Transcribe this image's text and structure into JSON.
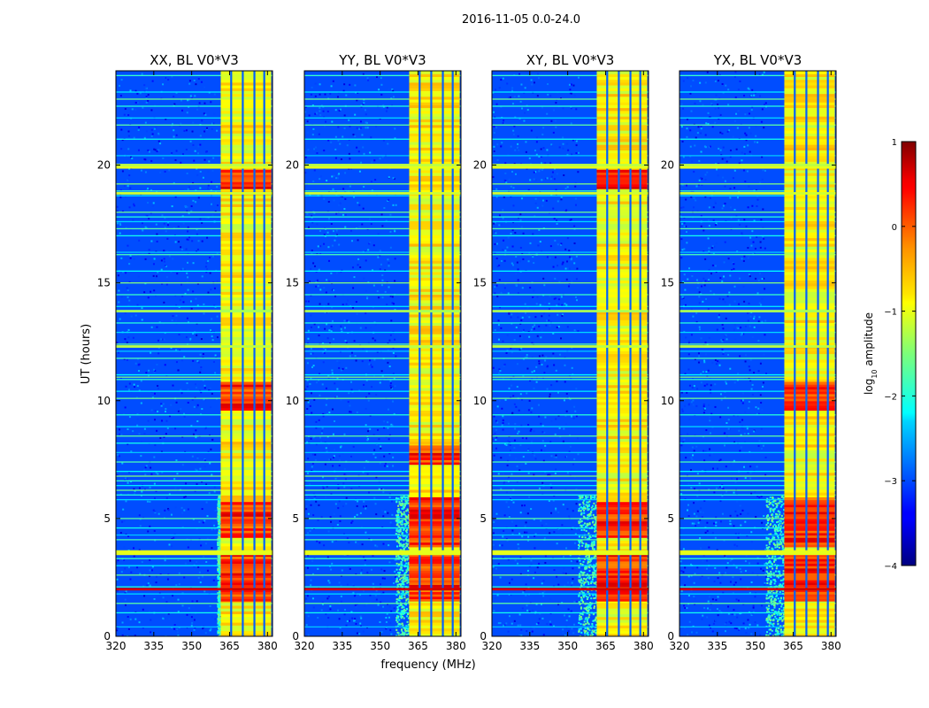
{
  "chart_data": {
    "type": "heatmap",
    "suptitle": "2016-11-05 0.0-24.0",
    "xlabel": "frequency (MHz)",
    "ylabel": "UT (hours)",
    "xlim": [
      320,
      382
    ],
    "ylim": [
      0,
      24
    ],
    "xticks": [
      320,
      335,
      350,
      365,
      380
    ],
    "yticks": [
      0,
      5,
      10,
      15,
      20
    ],
    "colormap": "jet",
    "colorbar": {
      "label": "log10 amplitude",
      "label_base": "log",
      "label_sub": "10",
      "label_rest": " amplitude",
      "range": [
        -4,
        1
      ],
      "ticks": [
        1,
        0,
        -1,
        -2,
        -3,
        -4
      ],
      "tick_labels": [
        "1",
        "0",
        "−1",
        "−2",
        "−3",
        "−4"
      ]
    },
    "panels": [
      {
        "title": "XX, BL V0*V3",
        "band_start_mhz": 361.5,
        "left_edge_mhz": 360,
        "red_zones_hours": [
          [
            1.5,
            3.5
          ],
          [
            4.2,
            5.6
          ],
          [
            9.6,
            10.7
          ],
          [
            19.0,
            19.8
          ]
        ]
      },
      {
        "title": "YY, BL V0*V3",
        "band_start_mhz": 361.5,
        "left_edge_mhz": 356,
        "red_zones_hours": [
          [
            1.5,
            3.5
          ],
          [
            3.8,
            5.8
          ],
          [
            7.3,
            8.0
          ]
        ]
      },
      {
        "title": "XY, BL V0*V3",
        "band_start_mhz": 361.5,
        "left_edge_mhz": 354,
        "red_zones_hours": [
          [
            1.5,
            3.5
          ],
          [
            4.2,
            5.6
          ],
          [
            19.0,
            19.8
          ]
        ]
      },
      {
        "title": "YX, BL V0*V3",
        "band_start_mhz": 361.5,
        "left_edge_mhz": 354,
        "red_zones_hours": [
          [
            1.5,
            3.5
          ],
          [
            3.8,
            5.8
          ],
          [
            9.6,
            10.7
          ]
        ]
      }
    ],
    "band": {
      "end_mhz": 381.5,
      "dark_gap_channels_mhz": [
        365.6,
        370.2,
        374.8,
        378.7
      ],
      "value_range": [
        -1.2,
        -0.5
      ]
    },
    "background_value": -3.0,
    "rfi_lines_hours": [
      0.4,
      1.0,
      1.4,
      1.8,
      2.1,
      2.6,
      3.0,
      3.3,
      3.5,
      3.6,
      4.1,
      4.3,
      4.6,
      5.0,
      5.8,
      6.0,
      6.2,
      6.4,
      6.6,
      6.8,
      7.0,
      7.4,
      7.8,
      8.2,
      8.5,
      8.9,
      9.4,
      10.1,
      10.4,
      10.9,
      11.0,
      11.1,
      11.8,
      12.1,
      12.3,
      12.4,
      12.9,
      13.3,
      13.8,
      14.0,
      14.5,
      15.0,
      15.5,
      16.2,
      16.3,
      17.0,
      17.3,
      17.6,
      17.8,
      18.0,
      18.7,
      18.9,
      19.2,
      19.9,
      20.0,
      20.4,
      21.1,
      21.7,
      22.0,
      22.5,
      22.8,
      23.1,
      23.8
    ],
    "strong_lines_hours": [
      [
        2.0,
        0.6
      ],
      [
        3.5,
        -1.0
      ],
      [
        3.6,
        -1.0
      ],
      [
        12.3,
        -1.2
      ],
      [
        19.9,
        -1.0
      ],
      [
        20.0,
        -1.2
      ],
      [
        18.8,
        -1.1
      ],
      [
        13.8,
        -1.3
      ]
    ]
  }
}
